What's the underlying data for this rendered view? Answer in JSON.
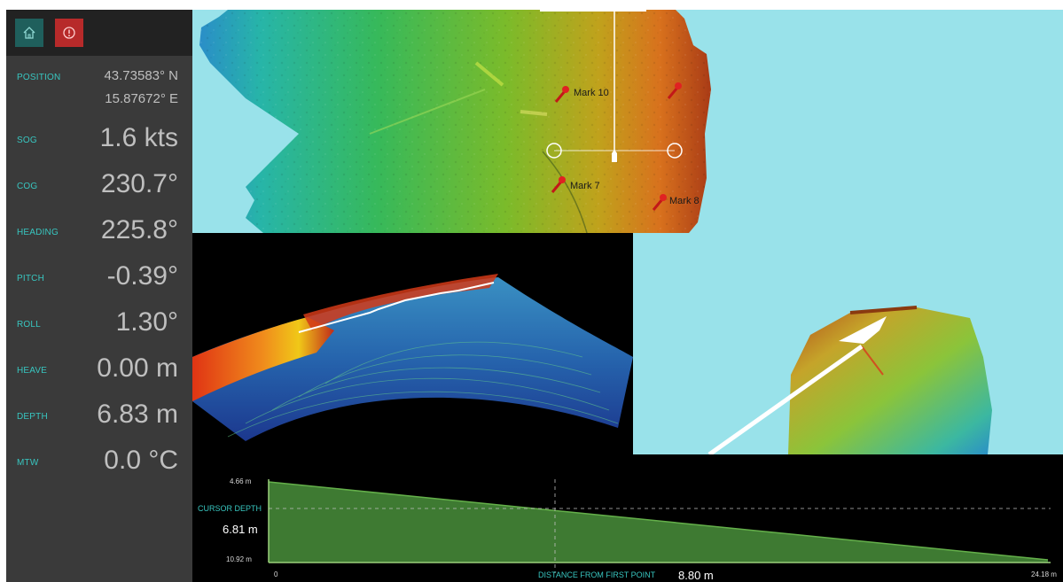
{
  "sidebar": {
    "toolbar": {
      "home_icon": "home-icon",
      "alert_icon": "alert-icon"
    },
    "rows": [
      {
        "key": "position",
        "label": "POSITION",
        "value": "43.73583° N",
        "value2": "15.87672° E"
      },
      {
        "key": "sog",
        "label": "SOG",
        "value": "1.6 kts"
      },
      {
        "key": "cog",
        "label": "COG",
        "value": "230.7°"
      },
      {
        "key": "heading",
        "label": "HEADING",
        "value": "225.8°"
      },
      {
        "key": "pitch",
        "label": "PITCH",
        "value": "-0.39°"
      },
      {
        "key": "roll",
        "label": "ROLL",
        "value": "1.30°"
      },
      {
        "key": "heave",
        "label": "HEAVE",
        "value": "0.00 m"
      },
      {
        "key": "depth",
        "label": "DEPTH",
        "value": "6.83 m"
      },
      {
        "key": "mtw",
        "label": "MTW",
        "value": "0.0 °C"
      }
    ]
  },
  "map": {
    "marks": [
      {
        "label": "Mark 10"
      },
      {
        "label": "Mark 7"
      },
      {
        "label": "Mark 8"
      }
    ],
    "colors": {
      "background": "#99e2ea",
      "shallow": "#e86a1a",
      "deep": "#2a8ec8"
    }
  },
  "profile": {
    "y_top_label": "4.66 m",
    "y_bottom_label": "10.92 m",
    "cursor_depth_label": "CURSOR DEPTH",
    "cursor_depth_value": "6.81 m",
    "x_start_label": "0",
    "x_end_label": "24.18 m",
    "distance_label": "DISTANCE FROM FIRST POINT",
    "distance_value": "8.80 m",
    "fill_color": "#3e7a32"
  }
}
